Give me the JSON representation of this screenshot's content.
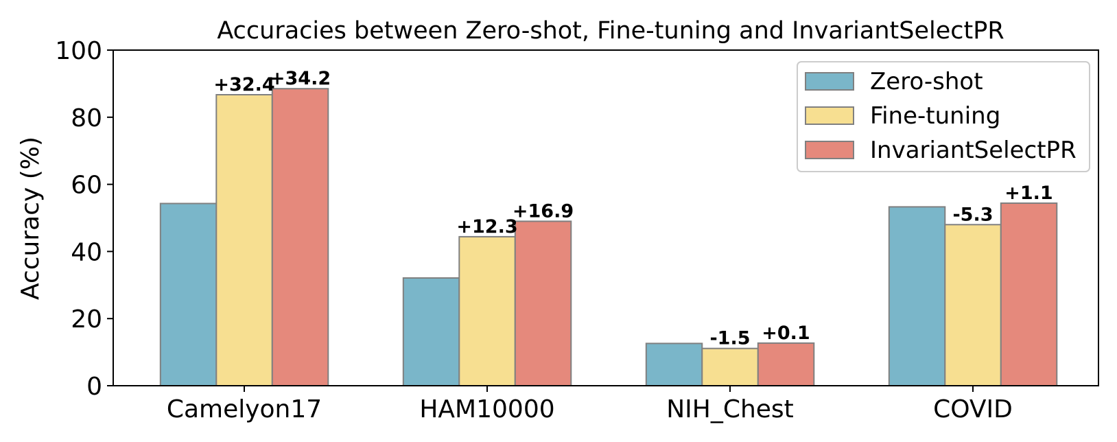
{
  "chart_data": {
    "type": "bar",
    "title": "Accuracies between Zero-shot, Fine-tuning and InvariantSelectPR",
    "xlabel": "",
    "ylabel": "Accuracy (%)",
    "ylim": [
      0,
      100
    ],
    "yticks": [
      "0",
      "20",
      "40",
      "60",
      "80",
      "100"
    ],
    "ytick_values": [
      0,
      20,
      40,
      60,
      80,
      100
    ],
    "categories": [
      "Camelyon17",
      "HAM10000",
      "NIH_Chest",
      "COVID"
    ],
    "series": [
      {
        "name": "Zero-shot",
        "color": "#7ab6c9",
        "values": [
          54.3,
          32.1,
          12.6,
          53.3
        ],
        "deltas": [
          "",
          "",
          "",
          ""
        ]
      },
      {
        "name": "Fine-tuning",
        "color": "#f7df91",
        "values": [
          86.7,
          44.4,
          11.1,
          48.0
        ],
        "deltas": [
          "+32.4",
          "+12.3",
          "-1.5",
          "-5.3"
        ]
      },
      {
        "name": "InvariantSelectPR",
        "color": "#e5897c",
        "values": [
          88.5,
          49.0,
          12.7,
          54.4
        ],
        "deltas": [
          "+34.2",
          "+16.9",
          "+0.1",
          "+1.1"
        ]
      }
    ],
    "legend_position": "top-right",
    "grid": false,
    "bar_edge_color": "#808080"
  }
}
